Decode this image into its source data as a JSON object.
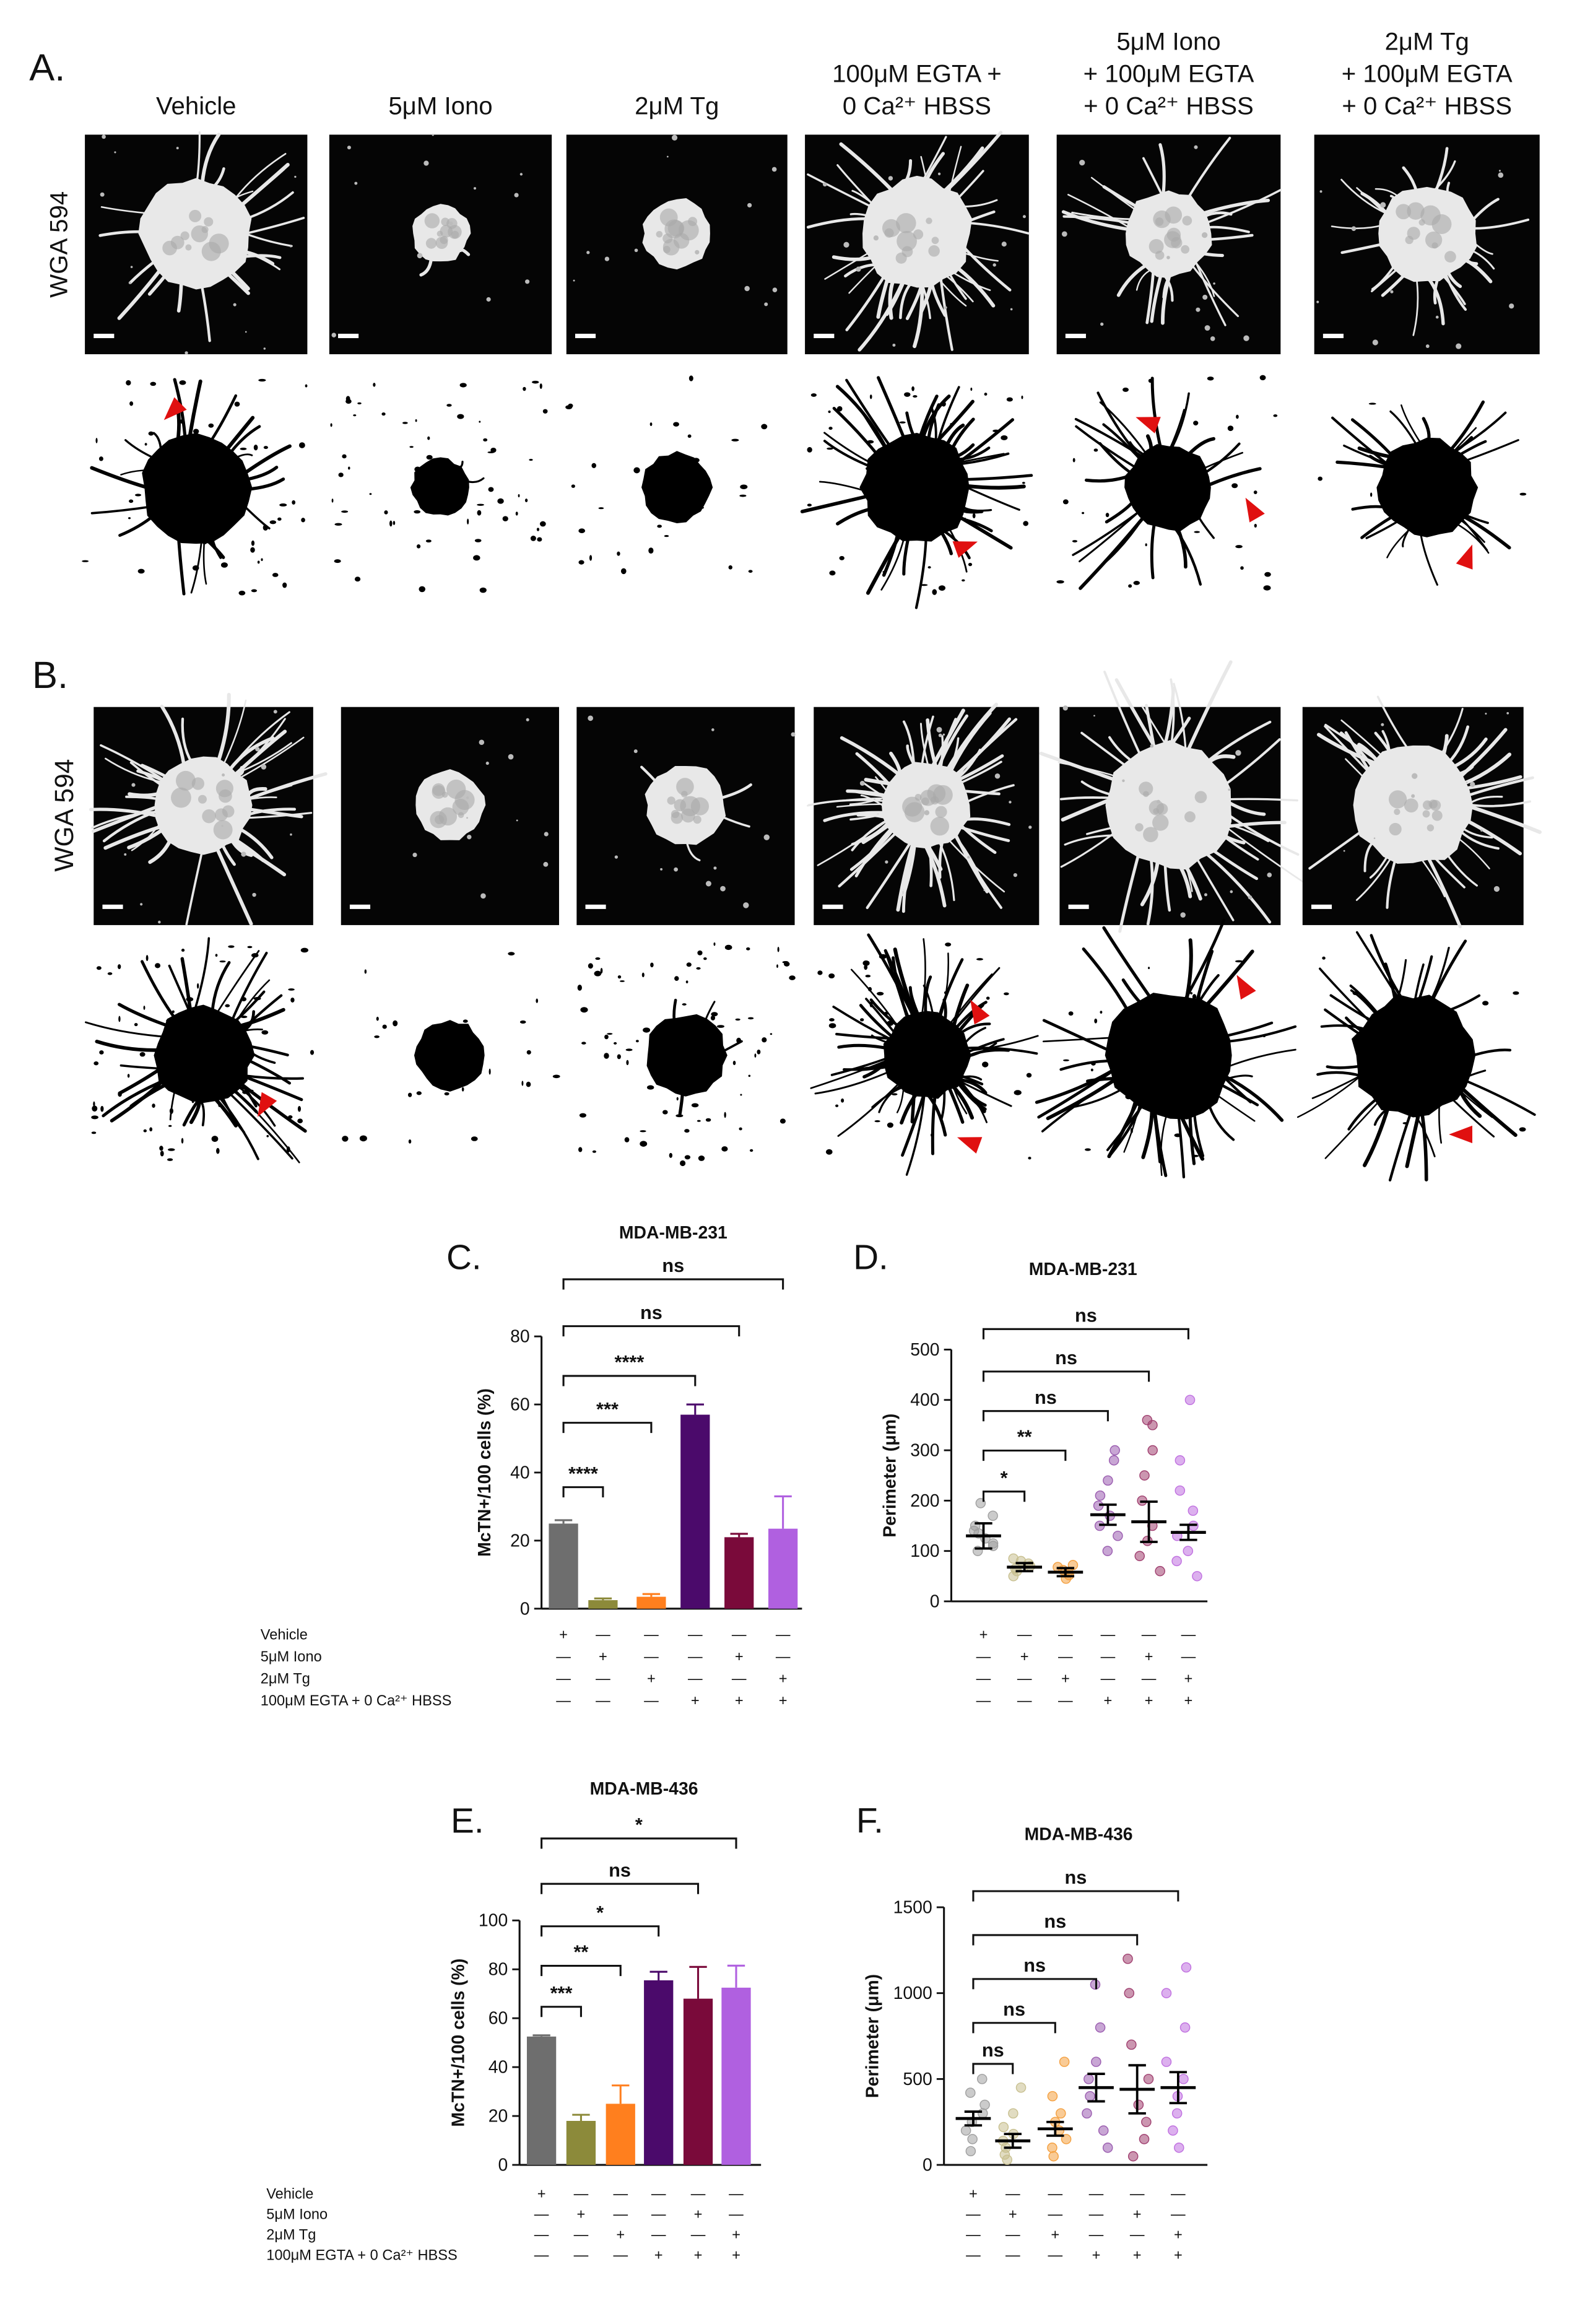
{
  "panel_a": {
    "label": "A.",
    "stain": "WGA 594",
    "headers": [
      [
        "Vehicle"
      ],
      [
        "5μM Iono"
      ],
      [
        "2μM Tg"
      ],
      [
        "100μM EGTA +",
        "0 Ca²⁺ HBSS"
      ],
      [
        "5μM Iono",
        "+ 100μM EGTA",
        "+ 0 Ca²⁺ HBSS"
      ],
      [
        "2μM Tg",
        "+ 100μM EGTA",
        "+ 0 Ca²⁺ HBSS"
      ]
    ]
  },
  "panel_b": {
    "label": "B.",
    "stain": "WGA 594"
  },
  "chart_data": [
    {
      "type": "bar",
      "panel_label": "C.",
      "title": "MDA-MB-231",
      "ylabel": "McTN+/100 cells (%)",
      "categories": [
        null,
        null,
        null,
        null,
        null,
        null
      ],
      "values": [
        25,
        2.5,
        3.5,
        57,
        21,
        23.5
      ],
      "errors": [
        1,
        0.5,
        0.8,
        3,
        1,
        9.5
      ],
      "colors": [
        "#6e6e6e",
        "#8c8a3a",
        "#ff7f1e",
        "#4b0a6b",
        "#7a0a3a",
        "#b060e0"
      ],
      "ylim": [
        0,
        80
      ],
      "yticks": [
        0,
        20,
        40,
        60,
        80
      ],
      "significance": [
        "****",
        "***",
        "****",
        "ns",
        "ns"
      ],
      "conditions": [
        {
          "label": "Vehicle",
          "marks": [
            "+",
            "—",
            "—",
            "—",
            "—",
            "—"
          ]
        },
        {
          "label": "5μM Iono",
          "marks": [
            "—",
            "+",
            "—",
            "—",
            "+",
            "—"
          ]
        },
        {
          "label": "2μM Tg",
          "marks": [
            "—",
            "—",
            "+",
            "—",
            "—",
            "+"
          ]
        },
        {
          "label": "100μM EGTA + 0 Ca²⁺ HBSS",
          "marks": [
            "—",
            "—",
            "—",
            "+",
            "+",
            "+"
          ]
        }
      ]
    },
    {
      "type": "dotplot",
      "panel_label": "D.",
      "title": "MDA-MB-231",
      "ylabel": "Perimeter (μm)",
      "categories": [
        null,
        null,
        null,
        null,
        null,
        null
      ],
      "values": [
        130,
        68,
        58,
        172,
        158,
        137
      ],
      "errors": [
        25,
        8,
        8,
        20,
        40,
        15
      ],
      "colors": [
        "#a0a0a0",
        "#c8c090",
        "#f4a040",
        "#9b5db0",
        "#a04070",
        "#c070e0"
      ],
      "points": [
        [
          100,
          115,
          125,
          135,
          150,
          170,
          195,
          110,
          140
        ],
        [
          50,
          60,
          65,
          70,
          75,
          80,
          85
        ],
        [
          45,
          52,
          58,
          62,
          68,
          72
        ],
        [
          100,
          130,
          150,
          170,
          190,
          210,
          240,
          280,
          300
        ],
        [
          60,
          90,
          120,
          150,
          200,
          250,
          300,
          350,
          360
        ],
        [
          50,
          80,
          100,
          130,
          150,
          180,
          220,
          280,
          400
        ]
      ],
      "ylim": [
        0,
        500
      ],
      "yticks": [
        0,
        100,
        200,
        300,
        400,
        500
      ],
      "significance": [
        "*",
        "**",
        "ns",
        "ns",
        "ns"
      ],
      "conditions": [
        {
          "marks": [
            "+",
            "—",
            "—",
            "—",
            "—",
            "—"
          ]
        },
        {
          "marks": [
            "—",
            "+",
            "—",
            "—",
            "+",
            "—"
          ]
        },
        {
          "marks": [
            "—",
            "—",
            "+",
            "—",
            "—",
            "+"
          ]
        },
        {
          "marks": [
            "—",
            "—",
            "—",
            "+",
            "+",
            "+"
          ]
        }
      ]
    },
    {
      "type": "bar",
      "panel_label": "E.",
      "title": "MDA-MB-436",
      "ylabel": "McTN+/100 cells (%)",
      "categories": [
        null,
        null,
        null,
        null,
        null,
        null
      ],
      "values": [
        52.5,
        18,
        25,
        75.5,
        68,
        72.5
      ],
      "errors": [
        0.5,
        2.5,
        7.5,
        3.5,
        13,
        9
      ],
      "colors": [
        "#6e6e6e",
        "#8c8a3a",
        "#ff7f1e",
        "#4b0a6b",
        "#7a0a3a",
        "#b060e0"
      ],
      "ylim": [
        0,
        100
      ],
      "yticks": [
        0,
        20,
        40,
        60,
        80,
        100
      ],
      "significance": [
        "***",
        "**",
        "*",
        "ns",
        "*"
      ],
      "conditions": [
        {
          "label": "Vehicle",
          "marks": [
            "+",
            "—",
            "—",
            "—",
            "—",
            "—"
          ]
        },
        {
          "label": "5μM Iono",
          "marks": [
            "—",
            "+",
            "—",
            "—",
            "+",
            "—"
          ]
        },
        {
          "label": "2μM Tg",
          "marks": [
            "—",
            "—",
            "+",
            "—",
            "—",
            "+"
          ]
        },
        {
          "label": "100μM EGTA + 0 Ca²⁺ HBSS",
          "marks": [
            "—",
            "—",
            "—",
            "+",
            "+",
            "+"
          ]
        }
      ]
    },
    {
      "type": "dotplot",
      "panel_label": "F.",
      "title": "MDA-MB-436",
      "ylabel": "Perimeter (μm)",
      "categories": [
        null,
        null,
        null,
        null,
        null,
        null
      ],
      "values": [
        270,
        140,
        210,
        450,
        440,
        450
      ],
      "errors": [
        40,
        40,
        40,
        80,
        140,
        90
      ],
      "colors": [
        "#a0a0a0",
        "#c8c090",
        "#f4a040",
        "#9b5db0",
        "#a04070",
        "#c070e0"
      ],
      "points": [
        [
          80,
          150,
          200,
          250,
          300,
          350,
          420,
          500
        ],
        [
          30,
          60,
          100,
          140,
          180,
          220,
          300,
          450
        ],
        [
          50,
          100,
          150,
          200,
          250,
          300,
          400,
          600
        ],
        [
          100,
          200,
          300,
          400,
          500,
          600,
          800,
          1050
        ],
        [
          50,
          150,
          250,
          350,
          500,
          700,
          1000,
          1200
        ],
        [
          100,
          200,
          300,
          400,
          500,
          600,
          800,
          1000,
          1150
        ]
      ],
      "ylim": [
        0,
        1500
      ],
      "yticks": [
        0,
        500,
        1000,
        1500
      ],
      "significance": [
        "ns",
        "ns",
        "ns",
        "ns",
        "ns"
      ],
      "conditions": [
        {
          "marks": [
            "+",
            "—",
            "—",
            "—",
            "—",
            "—"
          ]
        },
        {
          "marks": [
            "—",
            "+",
            "—",
            "—",
            "+",
            "—"
          ]
        },
        {
          "marks": [
            "—",
            "—",
            "+",
            "—",
            "—",
            "+"
          ]
        },
        {
          "marks": [
            "—",
            "—",
            "—",
            "+",
            "+",
            "+"
          ]
        }
      ]
    }
  ]
}
